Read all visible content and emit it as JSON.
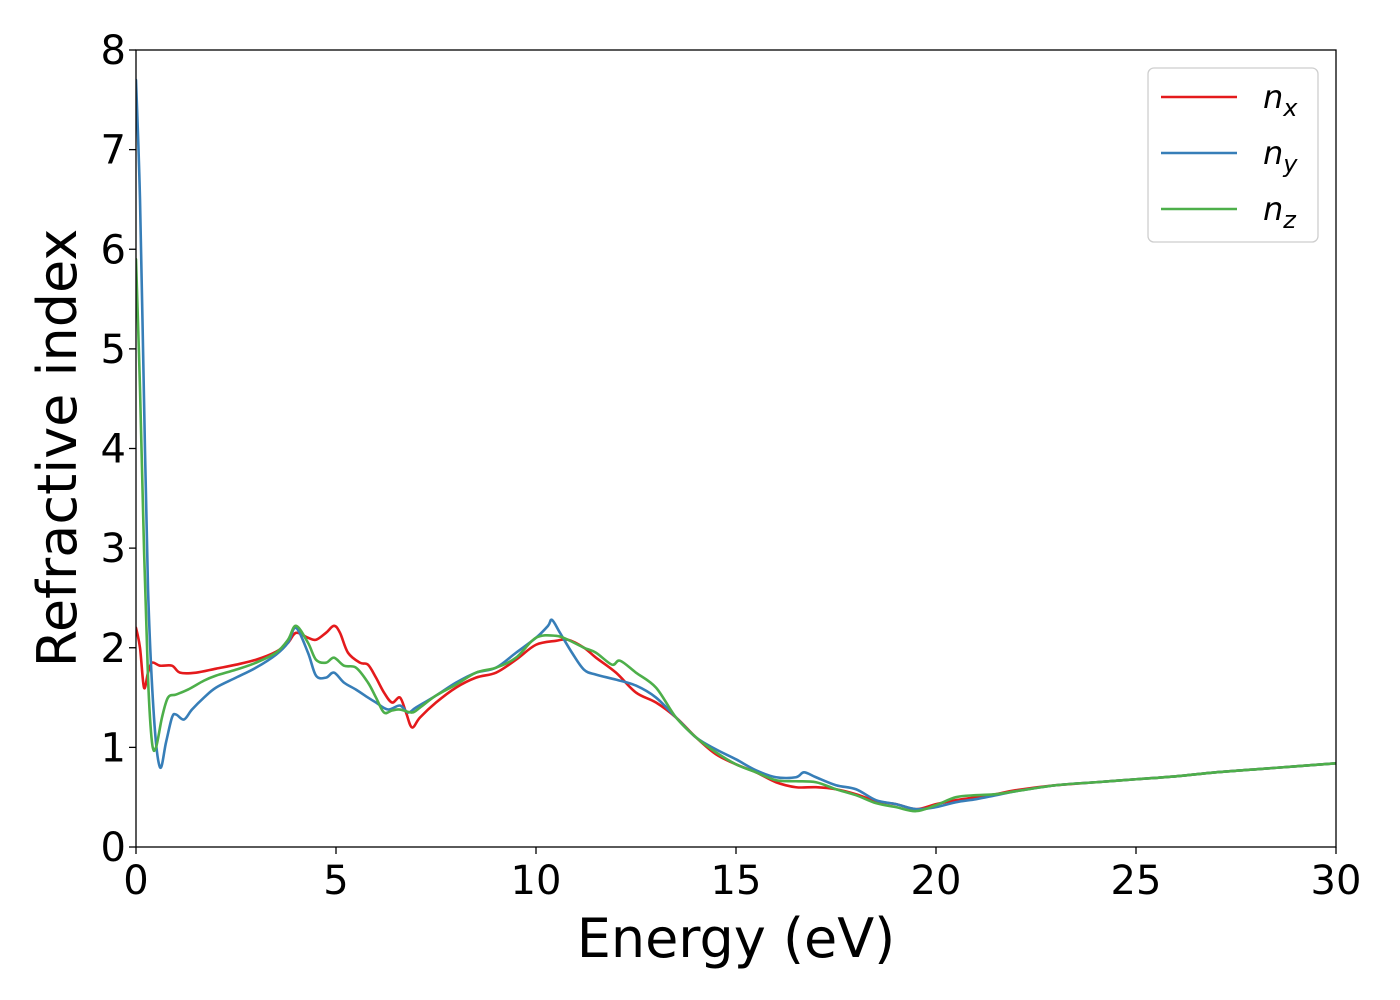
{
  "chart_data": {
    "type": "line",
    "title": "",
    "xlabel": "Energy (eV)",
    "ylabel": "Refractive index",
    "xlim": [
      0,
      30
    ],
    "ylim": [
      0,
      8
    ],
    "xticks": [
      0,
      5,
      10,
      15,
      20,
      25,
      30
    ],
    "yticks": [
      0,
      1,
      2,
      3,
      4,
      5,
      6,
      7,
      8
    ],
    "xtick_labels": [
      "0",
      "5",
      "10",
      "15",
      "20",
      "25",
      "30"
    ],
    "ytick_labels": [
      "0",
      "1",
      "2",
      "3",
      "4",
      "5",
      "6",
      "7",
      "8"
    ],
    "grid": false,
    "legend_position": "top-right",
    "series": [
      {
        "name": "n_x",
        "color": "#e41a1c",
        "points": [
          [
            0,
            2.2
          ],
          [
            0.1,
            2.0
          ],
          [
            0.2,
            1.6
          ],
          [
            0.3,
            1.75
          ],
          [
            0.4,
            1.85
          ],
          [
            0.6,
            1.82
          ],
          [
            0.9,
            1.82
          ],
          [
            1.1,
            1.75
          ],
          [
            1.5,
            1.75
          ],
          [
            2,
            1.79
          ],
          [
            2.5,
            1.83
          ],
          [
            3,
            1.88
          ],
          [
            3.5,
            1.96
          ],
          [
            3.8,
            2.05
          ],
          [
            4.0,
            2.15
          ],
          [
            4.3,
            2.1
          ],
          [
            4.5,
            2.08
          ],
          [
            4.75,
            2.15
          ],
          [
            4.95,
            2.22
          ],
          [
            5.1,
            2.15
          ],
          [
            5.3,
            1.95
          ],
          [
            5.6,
            1.85
          ],
          [
            5.8,
            1.83
          ],
          [
            6.0,
            1.7
          ],
          [
            6.2,
            1.55
          ],
          [
            6.4,
            1.45
          ],
          [
            6.6,
            1.5
          ],
          [
            6.75,
            1.35
          ],
          [
            6.9,
            1.2
          ],
          [
            7.1,
            1.3
          ],
          [
            7.5,
            1.45
          ],
          [
            8,
            1.6
          ],
          [
            8.5,
            1.7
          ],
          [
            9,
            1.75
          ],
          [
            9.5,
            1.88
          ],
          [
            10,
            2.03
          ],
          [
            10.5,
            2.07
          ],
          [
            10.8,
            2.08
          ],
          [
            11.2,
            2.0
          ],
          [
            11.5,
            1.9
          ],
          [
            12,
            1.75
          ],
          [
            12.5,
            1.55
          ],
          [
            13,
            1.45
          ],
          [
            13.5,
            1.3
          ],
          [
            14,
            1.1
          ],
          [
            14.5,
            0.93
          ],
          [
            15,
            0.83
          ],
          [
            15.5,
            0.75
          ],
          [
            16,
            0.65
          ],
          [
            16.5,
            0.6
          ],
          [
            17,
            0.6
          ],
          [
            17.5,
            0.58
          ],
          [
            18,
            0.53
          ],
          [
            18.5,
            0.46
          ],
          [
            19,
            0.43
          ],
          [
            19.5,
            0.38
          ],
          [
            20,
            0.43
          ],
          [
            20.5,
            0.47
          ],
          [
            21,
            0.5
          ],
          [
            21.5,
            0.53
          ],
          [
            22,
            0.57
          ],
          [
            23,
            0.62
          ],
          [
            24,
            0.65
          ],
          [
            25,
            0.68
          ],
          [
            26,
            0.71
          ],
          [
            27,
            0.75
          ],
          [
            28,
            0.78
          ],
          [
            29,
            0.81
          ],
          [
            30,
            0.84
          ]
        ]
      },
      {
        "name": "n_y",
        "color": "#377eb8",
        "points": [
          [
            0,
            7.7
          ],
          [
            0.1,
            6.5
          ],
          [
            0.2,
            4.5
          ],
          [
            0.3,
            2.6
          ],
          [
            0.45,
            1.3
          ],
          [
            0.6,
            0.8
          ],
          [
            0.75,
            1.05
          ],
          [
            0.9,
            1.3
          ],
          [
            1.0,
            1.33
          ],
          [
            1.2,
            1.28
          ],
          [
            1.4,
            1.38
          ],
          [
            1.7,
            1.5
          ],
          [
            2,
            1.6
          ],
          [
            2.5,
            1.7
          ],
          [
            3,
            1.8
          ],
          [
            3.5,
            1.93
          ],
          [
            3.8,
            2.05
          ],
          [
            4.0,
            2.2
          ],
          [
            4.3,
            1.95
          ],
          [
            4.5,
            1.72
          ],
          [
            4.75,
            1.7
          ],
          [
            4.95,
            1.75
          ],
          [
            5.2,
            1.65
          ],
          [
            5.5,
            1.58
          ],
          [
            5.8,
            1.5
          ],
          [
            6.0,
            1.45
          ],
          [
            6.3,
            1.38
          ],
          [
            6.6,
            1.42
          ],
          [
            6.8,
            1.35
          ],
          [
            7.0,
            1.4
          ],
          [
            7.5,
            1.52
          ],
          [
            8,
            1.65
          ],
          [
            8.5,
            1.75
          ],
          [
            9,
            1.8
          ],
          [
            9.5,
            1.95
          ],
          [
            10,
            2.1
          ],
          [
            10.3,
            2.22
          ],
          [
            10.4,
            2.28
          ],
          [
            10.6,
            2.15
          ],
          [
            10.9,
            1.95
          ],
          [
            11.2,
            1.78
          ],
          [
            11.5,
            1.73
          ],
          [
            12,
            1.68
          ],
          [
            12.5,
            1.62
          ],
          [
            13,
            1.5
          ],
          [
            13.5,
            1.3
          ],
          [
            14,
            1.1
          ],
          [
            14.5,
            0.98
          ],
          [
            15,
            0.88
          ],
          [
            15.5,
            0.77
          ],
          [
            16,
            0.7
          ],
          [
            16.5,
            0.7
          ],
          [
            16.7,
            0.75
          ],
          [
            17,
            0.7
          ],
          [
            17.5,
            0.62
          ],
          [
            18,
            0.58
          ],
          [
            18.5,
            0.47
          ],
          [
            19,
            0.43
          ],
          [
            19.5,
            0.38
          ],
          [
            20,
            0.4
          ],
          [
            20.5,
            0.45
          ],
          [
            21,
            0.48
          ],
          [
            21.5,
            0.52
          ],
          [
            22,
            0.56
          ],
          [
            23,
            0.62
          ],
          [
            24,
            0.65
          ],
          [
            25,
            0.68
          ],
          [
            26,
            0.71
          ],
          [
            27,
            0.75
          ],
          [
            28,
            0.78
          ],
          [
            29,
            0.81
          ],
          [
            30,
            0.84
          ]
        ]
      },
      {
        "name": "n_z",
        "color": "#4daf4a",
        "points": [
          [
            0,
            5.9
          ],
          [
            0.1,
            4.6
          ],
          [
            0.2,
            3.0
          ],
          [
            0.3,
            1.7
          ],
          [
            0.4,
            1.05
          ],
          [
            0.5,
            1.0
          ],
          [
            0.65,
            1.3
          ],
          [
            0.8,
            1.5
          ],
          [
            1.0,
            1.53
          ],
          [
            1.3,
            1.58
          ],
          [
            1.7,
            1.67
          ],
          [
            2,
            1.72
          ],
          [
            2.5,
            1.78
          ],
          [
            3,
            1.85
          ],
          [
            3.5,
            1.95
          ],
          [
            3.8,
            2.08
          ],
          [
            4.0,
            2.22
          ],
          [
            4.3,
            2.05
          ],
          [
            4.5,
            1.88
          ],
          [
            4.75,
            1.85
          ],
          [
            4.95,
            1.9
          ],
          [
            5.2,
            1.82
          ],
          [
            5.5,
            1.8
          ],
          [
            5.8,
            1.65
          ],
          [
            6.0,
            1.5
          ],
          [
            6.2,
            1.35
          ],
          [
            6.4,
            1.37
          ],
          [
            6.6,
            1.38
          ],
          [
            6.9,
            1.35
          ],
          [
            7.1,
            1.4
          ],
          [
            7.5,
            1.52
          ],
          [
            8,
            1.63
          ],
          [
            8.5,
            1.75
          ],
          [
            9,
            1.8
          ],
          [
            9.5,
            1.9
          ],
          [
            10,
            2.1
          ],
          [
            10.5,
            2.12
          ],
          [
            10.8,
            2.08
          ],
          [
            11.2,
            2.0
          ],
          [
            11.5,
            1.95
          ],
          [
            11.9,
            1.83
          ],
          [
            12.1,
            1.87
          ],
          [
            12.5,
            1.75
          ],
          [
            13,
            1.6
          ],
          [
            13.5,
            1.3
          ],
          [
            14,
            1.1
          ],
          [
            14.5,
            0.95
          ],
          [
            15,
            0.83
          ],
          [
            15.5,
            0.75
          ],
          [
            16,
            0.67
          ],
          [
            16.5,
            0.66
          ],
          [
            17,
            0.65
          ],
          [
            17.5,
            0.58
          ],
          [
            18,
            0.52
          ],
          [
            18.5,
            0.44
          ],
          [
            19,
            0.4
          ],
          [
            19.5,
            0.36
          ],
          [
            20,
            0.42
          ],
          [
            20.5,
            0.5
          ],
          [
            21,
            0.52
          ],
          [
            21.5,
            0.53
          ],
          [
            22,
            0.56
          ],
          [
            23,
            0.62
          ],
          [
            24,
            0.65
          ],
          [
            25,
            0.68
          ],
          [
            26,
            0.71
          ],
          [
            27,
            0.75
          ],
          [
            28,
            0.78
          ],
          [
            29,
            0.81
          ],
          [
            30,
            0.84
          ]
        ]
      }
    ],
    "legend": [
      {
        "base": "n",
        "sub": "x",
        "color": "#e41a1c"
      },
      {
        "base": "n",
        "sub": "y",
        "color": "#377eb8"
      },
      {
        "base": "n",
        "sub": "z",
        "color": "#4daf4a"
      }
    ]
  }
}
